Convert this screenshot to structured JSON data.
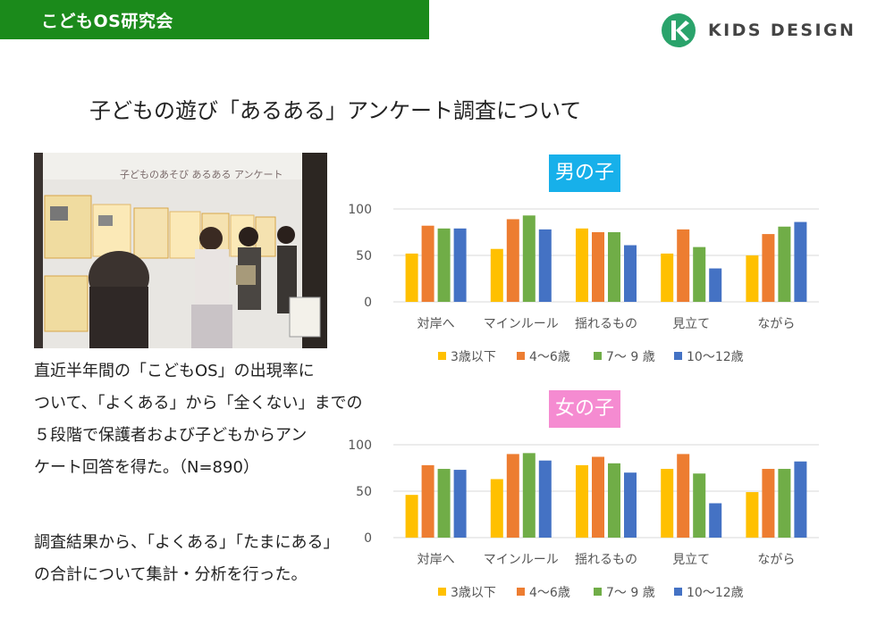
{
  "header": {
    "label": "こどもOS研究会",
    "band_color": "#1b8a1b"
  },
  "logo": {
    "text": "KIDS DESIGN",
    "icon": "kids-design-logo-icon",
    "color": "#2aa36b"
  },
  "title": "子どもの遊び「あるある」アンケート調査について",
  "photo": {
    "icon": "exhibition-photo",
    "poster_text": "子どものあそび あるある アンケート"
  },
  "body": {
    "p1_lines": [
      "直近半年間の「こどもOS」の出現率に",
      "ついて、「よくある」から「全くない」までの",
      "５段階で保護者および子どもからアン",
      "ケート回答を得た。（N=890）"
    ],
    "p2_lines": [
      "調査結果から、「よくある」「たまにある」",
      "の合計について集計・分析を行った。"
    ]
  },
  "chart_data": [
    {
      "type": "bar",
      "title": "男の子",
      "title_bg": "#17b0ea",
      "categories": [
        "対岸へ",
        "マインルール",
        "揺れるもの",
        "見立て",
        "ながら"
      ],
      "yticks": [
        "0",
        "50",
        "100"
      ],
      "ylim": [
        0,
        100
      ],
      "grid": true,
      "legend_position": "bottom",
      "series": [
        {
          "name": "3歳以下",
          "color": "#ffc000",
          "values": [
            52,
            57,
            79,
            52,
            50
          ]
        },
        {
          "name": "4〜6歳",
          "color": "#ed7d31",
          "values": [
            82,
            89,
            75,
            78,
            73
          ]
        },
        {
          "name": "7〜 9 歳",
          "color": "#70ad47",
          "values": [
            79,
            93,
            75,
            59,
            81
          ]
        },
        {
          "name": "10〜12歳",
          "color": "#4472c4",
          "values": [
            79,
            78,
            61,
            36,
            86
          ]
        }
      ]
    },
    {
      "type": "bar",
      "title": "女の子",
      "title_bg": "#f58bd1",
      "categories": [
        "対岸へ",
        "マインルール",
        "揺れるもの",
        "見立て",
        "ながら"
      ],
      "yticks": [
        "0",
        "50",
        "100"
      ],
      "ylim": [
        0,
        100
      ],
      "grid": true,
      "legend_position": "bottom",
      "series": [
        {
          "name": "3歳以下",
          "color": "#ffc000",
          "values": [
            46,
            63,
            78,
            74,
            49
          ]
        },
        {
          "name": "4〜6歳",
          "color": "#ed7d31",
          "values": [
            78,
            90,
            87,
            90,
            74
          ]
        },
        {
          "name": "7〜 9 歳",
          "color": "#70ad47",
          "values": [
            74,
            91,
            80,
            69,
            74
          ]
        },
        {
          "name": "10〜12歳",
          "color": "#4472c4",
          "values": [
            73,
            83,
            70,
            37,
            82
          ]
        }
      ]
    }
  ]
}
